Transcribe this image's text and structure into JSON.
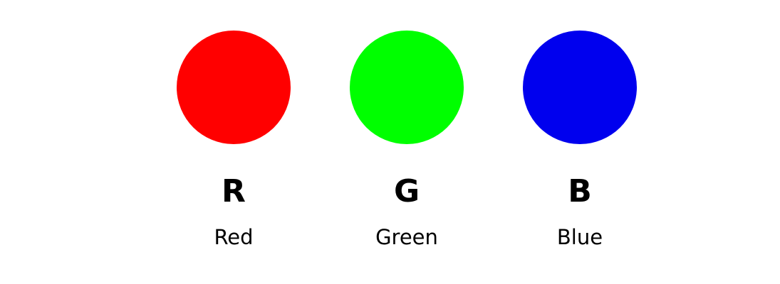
{
  "swatches": [
    {
      "letter": "R",
      "name": "Red",
      "color": "#ff0000"
    },
    {
      "letter": "G",
      "name": "Green",
      "color": "#00ff00"
    },
    {
      "letter": "B",
      "name": "Blue",
      "color": "#0000ee"
    }
  ]
}
